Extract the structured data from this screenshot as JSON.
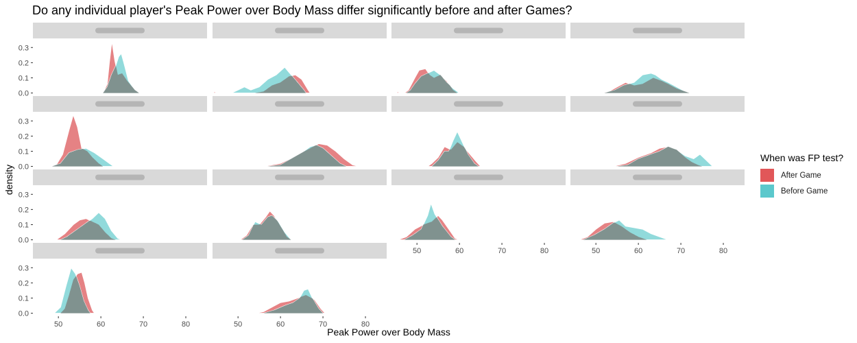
{
  "chart_data": {
    "type": "area",
    "title": "Do any individual player's Peak Power over Body Mass differ significantly before and after Games?",
    "xlabel": "Peak Power over Body Mass",
    "ylabel": "density",
    "xlim": [
      44,
      85
    ],
    "ylim": [
      -0.02,
      0.36
    ],
    "x_ticks": [
      50,
      60,
      70,
      80
    ],
    "y_ticks": [
      0.0,
      0.1,
      0.2,
      0.3
    ],
    "grid": false,
    "legend_position": "right",
    "legend": {
      "title": "When was FP test?",
      "entries": [
        {
          "label": "After Game",
          "color": "#e15759"
        },
        {
          "label": "Before Game",
          "color": "#5bc8cc"
        }
      ]
    },
    "series_colors": {
      "after": "#e06c6e",
      "before": "#7ed3d5"
    },
    "panels": [
      {
        "after": [
          [
            60.5,
            0
          ],
          [
            61.5,
            0.06
          ],
          [
            62,
            0.2
          ],
          [
            62.6,
            0.34
          ],
          [
            63.3,
            0.21
          ],
          [
            64,
            0.12
          ],
          [
            65,
            0.13
          ],
          [
            66.2,
            0.08
          ],
          [
            68,
            0.02
          ],
          [
            69,
            0
          ]
        ],
        "before": [
          [
            60.5,
            0
          ],
          [
            61.5,
            0.04
          ],
          [
            62.5,
            0.12
          ],
          [
            63.5,
            0.18
          ],
          [
            64.2,
            0.24
          ],
          [
            64.8,
            0.26
          ],
          [
            65.4,
            0.2
          ],
          [
            66.5,
            0.08
          ],
          [
            68,
            0.02
          ],
          [
            69,
            0
          ]
        ]
      },
      {
        "after": [
          [
            44,
            0
          ],
          [
            44.5,
            0.008
          ],
          [
            45,
            0
          ],
          [
            54,
            0
          ],
          [
            56,
            0.01
          ],
          [
            58,
            0.05
          ],
          [
            60,
            0.07
          ],
          [
            62,
            0.11
          ],
          [
            63.5,
            0.12
          ],
          [
            65,
            0.09
          ],
          [
            66.5,
            0.02
          ],
          [
            67,
            0
          ]
        ],
        "before": [
          [
            48.5,
            0
          ],
          [
            50,
            0.02
          ],
          [
            51.5,
            0.04
          ],
          [
            53,
            0.02
          ],
          [
            55,
            0.04
          ],
          [
            57,
            0.09
          ],
          [
            59,
            0.12
          ],
          [
            61,
            0.17
          ],
          [
            62.5,
            0.12
          ],
          [
            64,
            0.07
          ],
          [
            65.5,
            0.02
          ],
          [
            66,
            0
          ]
        ]
      },
      {
        "after": [
          [
            45,
            0
          ],
          [
            45.5,
            0.008
          ],
          [
            46,
            0
          ],
          [
            47,
            0
          ],
          [
            48,
            0.02
          ],
          [
            49.5,
            0.1
          ],
          [
            50.5,
            0.15
          ],
          [
            52,
            0.16
          ],
          [
            53,
            0.12
          ],
          [
            54,
            0.1
          ],
          [
            55.5,
            0.12
          ],
          [
            57,
            0.08
          ],
          [
            58.5,
            0.02
          ],
          [
            59.5,
            0
          ]
        ],
        "before": [
          [
            47.5,
            0
          ],
          [
            48.5,
            0.02
          ],
          [
            49.5,
            0.06
          ],
          [
            51,
            0.11
          ],
          [
            52.5,
            0.13
          ],
          [
            54,
            0.15
          ],
          [
            55.5,
            0.12
          ],
          [
            57,
            0.07
          ],
          [
            58.5,
            0.03
          ],
          [
            60,
            0
          ]
        ]
      },
      {
        "after": [
          [
            51,
            0
          ],
          [
            53,
            0.01
          ],
          [
            55,
            0.04
          ],
          [
            57,
            0.07
          ],
          [
            59,
            0.05
          ],
          [
            61,
            0.06
          ],
          [
            63.5,
            0.1
          ],
          [
            65.5,
            0.08
          ],
          [
            67,
            0.06
          ],
          [
            69,
            0.03
          ],
          [
            71,
            0.01
          ],
          [
            72.5,
            0
          ]
        ],
        "before": [
          [
            52,
            0
          ],
          [
            54.5,
            0.02
          ],
          [
            56.5,
            0.05
          ],
          [
            59,
            0.07
          ],
          [
            61,
            0.12
          ],
          [
            63,
            0.13
          ],
          [
            64,
            0.12
          ],
          [
            65.5,
            0.09
          ],
          [
            67,
            0.07
          ],
          [
            69,
            0.04
          ],
          [
            71,
            0.01
          ],
          [
            72,
            0
          ]
        ]
      },
      {
        "after": [
          [
            48,
            0
          ],
          [
            49.5,
            0.01
          ],
          [
            51,
            0.08
          ],
          [
            52.5,
            0.24
          ],
          [
            53.5,
            0.34
          ],
          [
            54.5,
            0.26
          ],
          [
            55.5,
            0.12
          ],
          [
            56.8,
            0.1
          ],
          [
            58,
            0.06
          ],
          [
            59.5,
            0.02
          ],
          [
            60.5,
            0
          ]
        ],
        "before": [
          [
            48.5,
            0
          ],
          [
            50.5,
            0.02
          ],
          [
            52.5,
            0.09
          ],
          [
            54.5,
            0.11
          ],
          [
            56.5,
            0.12
          ],
          [
            58.5,
            0.09
          ],
          [
            60.5,
            0.05
          ],
          [
            62,
            0.02
          ],
          [
            63,
            0
          ]
        ]
      },
      {
        "after": [
          [
            56,
            0
          ],
          [
            60,
            0.02
          ],
          [
            63,
            0.06
          ],
          [
            65,
            0.09
          ],
          [
            67,
            0.12
          ],
          [
            69,
            0.15
          ],
          [
            71,
            0.14
          ],
          [
            73,
            0.1
          ],
          [
            75,
            0.05
          ],
          [
            77,
            0.01
          ],
          [
            78.5,
            0
          ],
          [
            79.5,
            0
          ],
          [
            80,
            0.005
          ],
          [
            80.5,
            0
          ]
        ],
        "before": [
          [
            57,
            0
          ],
          [
            60,
            0.01
          ],
          [
            62.5,
            0.05
          ],
          [
            65,
            0.09
          ],
          [
            67,
            0.13
          ],
          [
            68.5,
            0.14
          ],
          [
            70,
            0.12
          ],
          [
            72,
            0.07
          ],
          [
            74,
            0.02
          ],
          [
            75.5,
            0
          ]
        ]
      },
      {
        "after": [
          [
            52.5,
            0
          ],
          [
            53.5,
            0.02
          ],
          [
            55,
            0.06
          ],
          [
            56.5,
            0.13
          ],
          [
            58,
            0.11
          ],
          [
            59.5,
            0.16
          ],
          [
            61,
            0.13
          ],
          [
            62.5,
            0.08
          ],
          [
            64,
            0.03
          ],
          [
            65,
            0
          ]
        ],
        "before": [
          [
            53.5,
            0
          ],
          [
            55,
            0.04
          ],
          [
            56.5,
            0.1
          ],
          [
            57.5,
            0.1
          ],
          [
            58.5,
            0.17
          ],
          [
            59.5,
            0.23
          ],
          [
            60.5,
            0.17
          ],
          [
            62,
            0.08
          ],
          [
            63.5,
            0.02
          ],
          [
            64.5,
            0
          ]
        ]
      },
      {
        "after": [
          [
            54,
            0
          ],
          [
            57,
            0.02
          ],
          [
            60,
            0.06
          ],
          [
            63,
            0.09
          ],
          [
            65,
            0.12
          ],
          [
            67,
            0.13
          ],
          [
            69,
            0.11
          ],
          [
            71,
            0.06
          ],
          [
            72.5,
            0.03
          ],
          [
            74,
            0.01
          ],
          [
            75,
            0
          ]
        ],
        "before": [
          [
            55,
            0
          ],
          [
            57.5,
            0.01
          ],
          [
            60,
            0.05
          ],
          [
            63,
            0.08
          ],
          [
            65,
            0.1
          ],
          [
            67,
            0.13
          ],
          [
            69,
            0.11
          ],
          [
            71,
            0.07
          ],
          [
            73,
            0.05
          ],
          [
            74.5,
            0.08
          ],
          [
            76,
            0.04
          ],
          [
            77.5,
            0
          ]
        ]
      },
      {
        "after": [
          [
            49.5,
            0
          ],
          [
            51.5,
            0.04
          ],
          [
            53.5,
            0.1
          ],
          [
            55,
            0.13
          ],
          [
            56.5,
            0.14
          ],
          [
            58,
            0.12
          ],
          [
            59.5,
            0.1
          ],
          [
            61,
            0.05
          ],
          [
            62.5,
            0.01
          ],
          [
            63.5,
            0
          ]
        ],
        "before": [
          [
            50.5,
            0
          ],
          [
            52,
            0.02
          ],
          [
            54,
            0.06
          ],
          [
            56,
            0.1
          ],
          [
            58,
            0.14
          ],
          [
            59.5,
            0.18
          ],
          [
            61,
            0.14
          ],
          [
            62.5,
            0.06
          ],
          [
            64,
            0.01
          ],
          [
            65,
            0
          ]
        ]
      },
      {
        "after": [
          [
            50.5,
            0
          ],
          [
            52,
            0.03
          ],
          [
            53.5,
            0.1
          ],
          [
            55,
            0.1
          ],
          [
            56.5,
            0.15
          ],
          [
            57.5,
            0.19
          ],
          [
            58.5,
            0.16
          ],
          [
            60,
            0.09
          ],
          [
            61.5,
            0.02
          ],
          [
            62.5,
            0
          ]
        ],
        "before": [
          [
            51,
            0
          ],
          [
            52.5,
            0.03
          ],
          [
            54,
            0.12
          ],
          [
            55.5,
            0.1
          ],
          [
            57,
            0.15
          ],
          [
            58,
            0.16
          ],
          [
            59.5,
            0.12
          ],
          [
            61,
            0.05
          ],
          [
            62.5,
            0
          ]
        ]
      },
      {
        "after": [
          [
            45.5,
            0
          ],
          [
            47.5,
            0.02
          ],
          [
            49.5,
            0.07
          ],
          [
            51.5,
            0.1
          ],
          [
            53.5,
            0.12
          ],
          [
            55,
            0.16
          ],
          [
            56,
            0.13
          ],
          [
            57.5,
            0.07
          ],
          [
            59,
            0.01
          ],
          [
            60,
            0
          ]
        ],
        "before": [
          [
            47,
            0
          ],
          [
            49,
            0.03
          ],
          [
            51,
            0.07
          ],
          [
            52.5,
            0.16
          ],
          [
            53.3,
            0.24
          ],
          [
            54.2,
            0.17
          ],
          [
            56,
            0.09
          ],
          [
            58,
            0.02
          ],
          [
            59,
            0
          ]
        ]
      },
      {
        "after": [
          [
            46,
            0
          ],
          [
            48,
            0.02
          ],
          [
            50,
            0.07
          ],
          [
            52,
            0.11
          ],
          [
            54,
            0.12
          ],
          [
            56,
            0.09
          ],
          [
            58,
            0.05
          ],
          [
            60,
            0.02
          ],
          [
            62,
            0
          ]
        ],
        "before": [
          [
            47,
            0
          ],
          [
            49.5,
            0.03
          ],
          [
            52,
            0.07
          ],
          [
            54,
            0.11
          ],
          [
            55.5,
            0.13
          ],
          [
            57,
            0.09
          ],
          [
            59,
            0.08
          ],
          [
            61,
            0.07
          ],
          [
            63,
            0.04
          ],
          [
            65,
            0.02
          ],
          [
            67,
            0
          ]
        ]
      },
      {
        "after": [
          [
            50.5,
            0
          ],
          [
            51.5,
            0.03
          ],
          [
            52.5,
            0.12
          ],
          [
            53.5,
            0.22
          ],
          [
            54.5,
            0.26
          ],
          [
            55.5,
            0.27
          ],
          [
            56.2,
            0.2
          ],
          [
            57,
            0.1
          ],
          [
            58,
            0.02
          ],
          [
            58.5,
            0
          ]
        ],
        "before": [
          [
            49,
            0
          ],
          [
            50.5,
            0.04
          ],
          [
            51.8,
            0.18
          ],
          [
            53,
            0.3
          ],
          [
            54,
            0.26
          ],
          [
            55,
            0.18
          ],
          [
            56,
            0.08
          ],
          [
            57,
            0.02
          ],
          [
            57.5,
            0
          ]
        ]
      },
      {
        "after": [
          [
            54,
            0
          ],
          [
            56,
            0.01
          ],
          [
            58,
            0.04
          ],
          [
            60,
            0.07
          ],
          [
            62,
            0.08
          ],
          [
            64,
            0.1
          ],
          [
            66,
            0.12
          ],
          [
            68,
            0.09
          ],
          [
            69.5,
            0.03
          ],
          [
            70.5,
            0
          ]
        ],
        "before": [
          [
            56,
            0
          ],
          [
            58.5,
            0.02
          ],
          [
            61,
            0.05
          ],
          [
            63,
            0.07
          ],
          [
            64.5,
            0.1
          ],
          [
            65.5,
            0.15
          ],
          [
            66.5,
            0.16
          ],
          [
            67.5,
            0.1
          ],
          [
            69,
            0.03
          ],
          [
            70,
            0
          ]
        ]
      }
    ]
  }
}
